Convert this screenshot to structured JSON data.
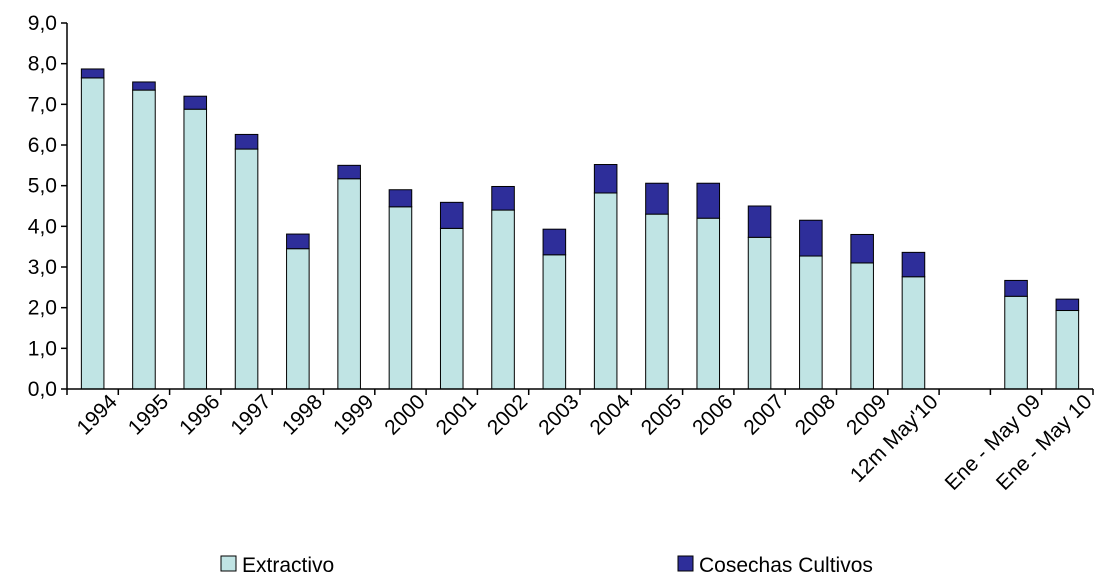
{
  "chart_data": {
    "type": "bar",
    "stacked": true,
    "categories": [
      "1994",
      "1995",
      "1996",
      "1997",
      "1998",
      "1999",
      "2000",
      "2001",
      "2002",
      "2003",
      "2004",
      "2005",
      "2006",
      "2007",
      "2008",
      "2009",
      "12m May'10",
      "",
      "Ene - May 09",
      "Ene - May 10"
    ],
    "series": [
      {
        "name": "Extractivo",
        "color": "#c0e4e4",
        "values": [
          7.65,
          7.35,
          6.88,
          5.9,
          3.45,
          5.17,
          4.48,
          3.95,
          4.4,
          3.3,
          4.82,
          4.3,
          4.2,
          3.73,
          3.27,
          3.1,
          2.76,
          null,
          2.28,
          1.93
        ]
      },
      {
        "name": "Cosechas Cultivos",
        "color": "#2e2e9a",
        "values": [
          0.22,
          0.2,
          0.32,
          0.36,
          0.36,
          0.33,
          0.42,
          0.64,
          0.58,
          0.63,
          0.7,
          0.76,
          0.86,
          0.77,
          0.88,
          0.7,
          0.6,
          null,
          0.39,
          0.28
        ]
      }
    ],
    "yticks": [
      "0,0",
      "1,0",
      "2,0",
      "3,0",
      "4,0",
      "5,0",
      "6,0",
      "7,0",
      "8,0",
      "9,0"
    ],
    "ylim": [
      0,
      9
    ],
    "legend_position": "bottom",
    "grid": false
  }
}
